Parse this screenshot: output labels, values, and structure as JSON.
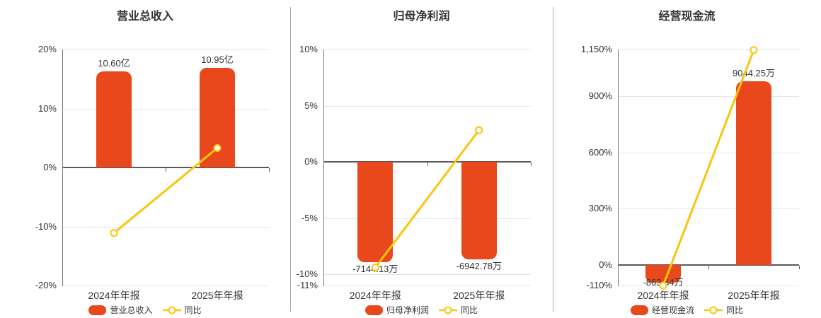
{
  "colors": {
    "bar": "#e8481c",
    "line": "#fbc40d",
    "grid": "#e0e5f0",
    "zero_line": "#595959",
    "axis_line": "#777777",
    "divider": "#a9a9a9",
    "text": "#333333",
    "marker_fill": "#ffffff"
  },
  "chart_data": [
    {
      "type": "bar",
      "title": "营业总收入",
      "categories": [
        "2024年年报",
        "2025年年报"
      ],
      "bars": {
        "name": "营业总收入",
        "unit": "亿",
        "values": [
          10.6,
          10.95
        ],
        "labels": [
          "10.60亿",
          "10.95亿"
        ]
      },
      "line": {
        "name": "同比",
        "values_pct": [
          -11.1,
          3.3
        ]
      },
      "y_axis": {
        "min": -20,
        "max": 20,
        "ticks": [
          {
            "value": 20,
            "label": "20%"
          },
          {
            "value": 10,
            "label": "10%"
          },
          {
            "value": 0,
            "label": "0%"
          },
          {
            "value": -10,
            "label": "-10%"
          },
          {
            "value": -20,
            "label": "-20%"
          }
        ]
      },
      "bar_axis": {
        "min": -13,
        "max": 13
      },
      "legend_position": "bottom",
      "grid": true
    },
    {
      "type": "bar",
      "title": "归母净利润",
      "categories": [
        "2024年年报",
        "2025年年报"
      ],
      "bars": {
        "name": "归母净利润",
        "unit": "万",
        "values": [
          -7144.13,
          -6942.78
        ],
        "labels": [
          "-7144.13万",
          "-6942.78万"
        ]
      },
      "line": {
        "name": "同比",
        "values_pct": [
          -9.4,
          2.82
        ]
      },
      "y_axis": {
        "min": -11,
        "max": 10,
        "ticks": [
          {
            "value": 10,
            "label": "10%"
          },
          {
            "value": 5,
            "label": "5%"
          },
          {
            "value": 0,
            "label": "0%"
          },
          {
            "value": -5,
            "label": "-5%"
          },
          {
            "value": -10,
            "label": "-10%"
          },
          {
            "value": -11,
            "label": "-11%"
          }
        ]
      },
      "bar_axis": {
        "min": -8810,
        "max": 8010
      },
      "legend_position": "bottom",
      "grid": true
    },
    {
      "type": "bar",
      "title": "经营现金流",
      "categories": [
        "2024年年报",
        "2025年年报"
      ],
      "bars": {
        "name": "经营现金流",
        "unit": "万",
        "values": [
          -863.64,
          9044.25
        ],
        "labels": [
          "-863.64万",
          "9044.25万"
        ]
      },
      "line": {
        "name": "同比",
        "values_pct": [
          -110.0,
          1147.2
        ]
      },
      "y_axis": {
        "min": -110,
        "max": 1150,
        "ticks": [
          {
            "value": 1150,
            "label": "1,150%"
          },
          {
            "value": 900,
            "label": "900%"
          },
          {
            "value": 600,
            "label": "600%"
          },
          {
            "value": 300,
            "label": "300%"
          },
          {
            "value": 0,
            "label": "0%"
          },
          {
            "value": -110,
            "label": "-110%"
          }
        ]
      },
      "bar_axis": {
        "min": -1014,
        "max": 10600
      },
      "legend_position": "bottom",
      "grid": true
    }
  ]
}
